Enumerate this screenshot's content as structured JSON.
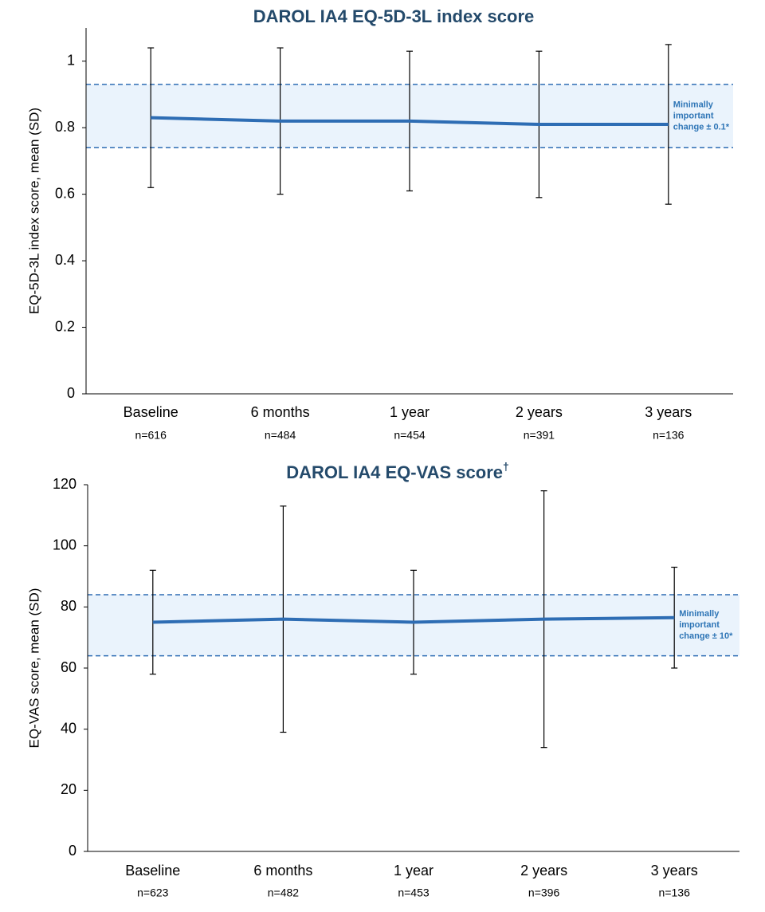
{
  "chart_data": [
    {
      "type": "line",
      "title": "DAROL IA4 EQ-5D-3L index score",
      "y_label": "EQ-5D-3L index score, mean (SD)",
      "categories": [
        "Baseline",
        "6 months",
        "1 year",
        "2 years",
        "3 years"
      ],
      "n_labels": [
        "n=616",
        "n=484",
        "n=454",
        "n=391",
        "n=136"
      ],
      "values": [
        0.83,
        0.82,
        0.82,
        0.81,
        0.81
      ],
      "errors": [
        0.21,
        0.22,
        0.21,
        0.22,
        0.24
      ],
      "color": "#2e6db4",
      "band": [
        0.74,
        0.93
      ],
      "band_color": "#eaf3fc",
      "annotation": [
        "Minimally",
        "important",
        "change ± 0.1*"
      ],
      "ylim": [
        0,
        1.1
      ],
      "yticks": [
        0,
        0.2,
        0.4,
        0.6,
        0.8,
        1
      ]
    },
    {
      "type": "line",
      "title": "DAROL IA4 EQ-VAS score",
      "title_superscript": "†",
      "y_label": "EQ-VAS score, mean (SD)",
      "categories": [
        "Baseline",
        "6 months",
        "1 year",
        "2 years",
        "3 years"
      ],
      "n_labels": [
        "n=623",
        "n=482",
        "n=453",
        "n=396",
        "n=136"
      ],
      "values": [
        75,
        76,
        75,
        76,
        76.5
      ],
      "errors": [
        17,
        37,
        17,
        42,
        16.5
      ],
      "color": "#2e6db4",
      "band": [
        64,
        84
      ],
      "band_color": "#eaf3fc",
      "annotation": [
        "Minimally",
        "important",
        "change ± 10*"
      ],
      "ylim": [
        0,
        120
      ],
      "yticks": [
        0,
        20,
        40,
        60,
        80,
        100,
        120
      ]
    }
  ]
}
